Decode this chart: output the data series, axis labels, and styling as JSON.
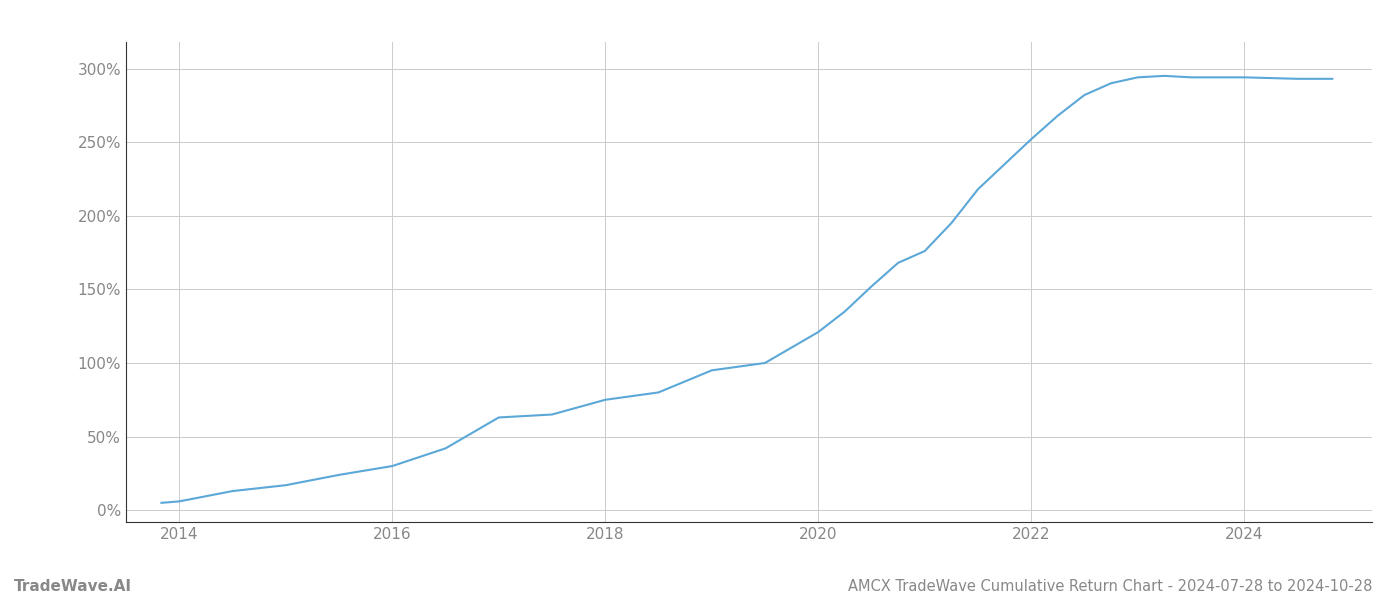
{
  "title": "AMCX TradeWave Cumulative Return Chart - 2024-07-28 to 2024-10-28",
  "watermark": "TradeWave.AI",
  "line_color": "#5ba8d8",
  "background_color": "#ffffff",
  "grid_color": "#cccccc",
  "x_years": [
    2013.83,
    2014.0,
    2014.5,
    2015.0,
    2015.5,
    2016.0,
    2016.5,
    2017.0,
    2017.5,
    2018.0,
    2018.5,
    2019.0,
    2019.5,
    2020.0,
    2020.25,
    2020.5,
    2020.75,
    2021.0,
    2021.25,
    2021.5,
    2021.75,
    2022.0,
    2022.25,
    2022.5,
    2022.75,
    2023.0,
    2023.25,
    2023.5,
    2023.75,
    2024.0,
    2024.5,
    2024.83
  ],
  "y_values": [
    5,
    6,
    13,
    17,
    24,
    30,
    42,
    63,
    65,
    75,
    80,
    95,
    100,
    121,
    135,
    152,
    168,
    176,
    195,
    218,
    235,
    252,
    268,
    282,
    290,
    294,
    295,
    294,
    294,
    294,
    293,
    293
  ],
  "yticks": [
    0,
    50,
    100,
    150,
    200,
    250,
    300
  ],
  "ytick_labels": [
    "0%",
    "50%",
    "100%",
    "150%",
    "200%",
    "250%",
    "300%"
  ],
  "xticks": [
    2014,
    2016,
    2018,
    2020,
    2022,
    2024
  ],
  "xlim": [
    2013.5,
    2025.2
  ],
  "ylim": [
    -8,
    318
  ],
  "line_width": 1.5,
  "title_fontsize": 10.5,
  "tick_fontsize": 11,
  "watermark_fontsize": 11,
  "axis_color": "#aaaaaa",
  "tick_color": "#888888",
  "spine_color": "#333333"
}
